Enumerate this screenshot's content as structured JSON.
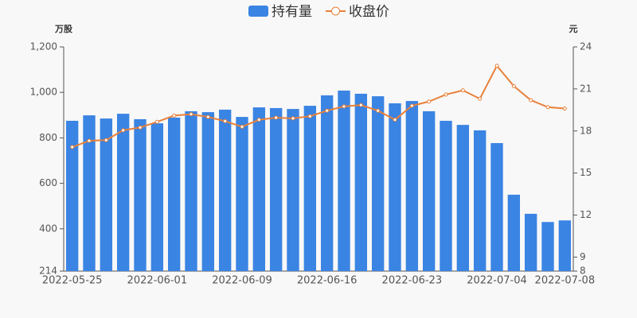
{
  "chart_data": {
    "type": "bar_line",
    "legend": "top",
    "grid": false,
    "y_label": "万股",
    "y2_label": "元",
    "categories": [
      "2022-05-25",
      null,
      null,
      null,
      null,
      "2022-06-01",
      null,
      null,
      null,
      null,
      "2022-06-09",
      null,
      null,
      null,
      null,
      "2022-06-16",
      null,
      null,
      null,
      null,
      "2022-06-23",
      null,
      null,
      null,
      null,
      "2022-07-04",
      null,
      null,
      null,
      "2022-07-08"
    ],
    "series": [
      {
        "name": "持有量",
        "type": "bar",
        "color": "#3a84e3",
        "values": [
          875,
          899,
          885,
          906,
          882,
          864,
          889,
          917,
          913,
          924,
          892,
          934,
          931,
          927,
          941,
          987,
          1008,
          994,
          983,
          952,
          962,
          917,
          875,
          857,
          833,
          777,
          550,
          466,
          430,
          437
        ]
      },
      {
        "name": "收盘价",
        "type": "line",
        "axis": "y2",
        "color": "#e8803a",
        "values": [
          16.85,
          17.3,
          17.35,
          18.05,
          18.25,
          18.65,
          19.1,
          19.2,
          19.0,
          18.7,
          18.3,
          18.8,
          18.95,
          18.9,
          19.05,
          19.45,
          19.75,
          19.85,
          19.45,
          18.8,
          19.8,
          20.1,
          20.6,
          20.9,
          20.3,
          22.65,
          21.2,
          20.2,
          19.7,
          19.6
        ]
      }
    ],
    "ylim": [
      214,
      1200
    ],
    "yticks": [
      214,
      400,
      600,
      800,
      {
        "value": 1000,
        "label": "1,000"
      },
      {
        "value": 1200,
        "label": "1,200"
      }
    ],
    "y2lim": [
      8,
      24
    ],
    "y2ticks": [
      8,
      9,
      12,
      15,
      18,
      21,
      24
    ]
  }
}
